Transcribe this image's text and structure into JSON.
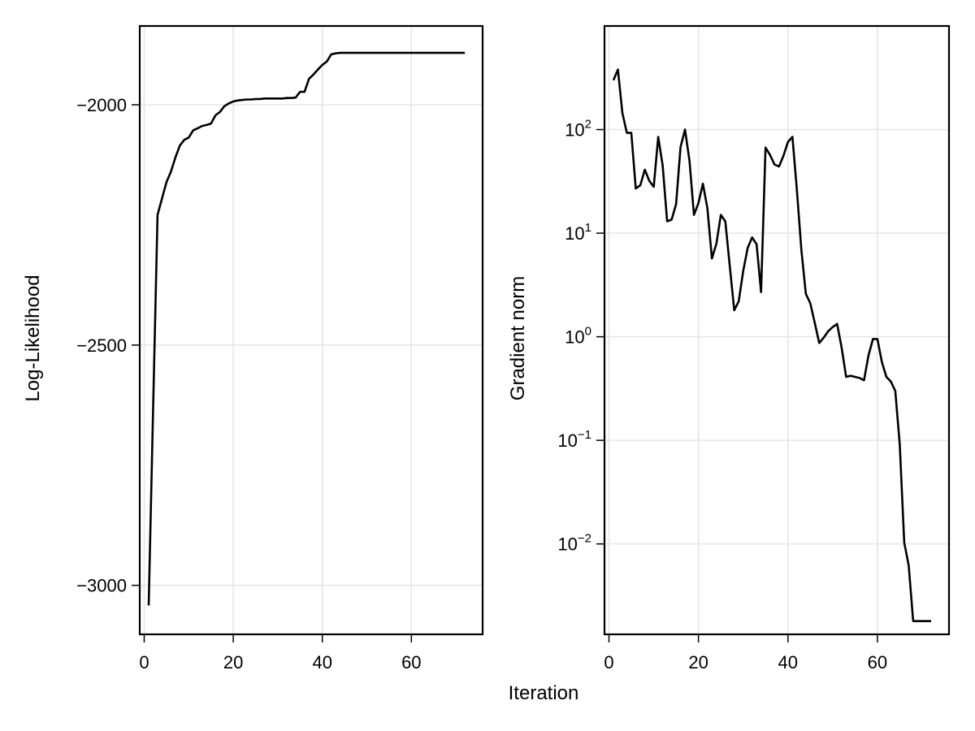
{
  "figure": {
    "shared_xlabel": "Iteration",
    "line_color": "#000000",
    "grid_color": "#e5e5e5",
    "frame_color": "#000000",
    "background": "#ffffff"
  },
  "chart_data": [
    {
      "type": "line",
      "title": "",
      "xlabel": "Iteration",
      "ylabel": "Log-Likelihood",
      "xscale": "linear",
      "yscale": "linear",
      "grid": true,
      "legend": null,
      "xlim": [
        -1,
        76
      ],
      "ylim": [
        -3102,
        -1836
      ],
      "xticks": [
        0,
        20,
        40,
        60
      ],
      "xtick_labels": [
        "0",
        "20",
        "40",
        "60"
      ],
      "yticks": [
        -3000,
        -2500,
        -2000
      ],
      "ytick_labels": [
        "−3000",
        "−2500",
        "−2000"
      ],
      "series": [
        {
          "name": "Log-Likelihood",
          "x": [
            1,
            2,
            3,
            4,
            5,
            6,
            7,
            8,
            9,
            10,
            11,
            12,
            13,
            14,
            15,
            16,
            17,
            18,
            19,
            20,
            21,
            22,
            23,
            24,
            25,
            26,
            27,
            28,
            29,
            30,
            31,
            32,
            33,
            34,
            35,
            36,
            37,
            38,
            39,
            40,
            41,
            42,
            43,
            44,
            45,
            46,
            47,
            48,
            49,
            50,
            51,
            52,
            53,
            54,
            55,
            56,
            57,
            58,
            59,
            60,
            61,
            62,
            63,
            64,
            65,
            66,
            67,
            68,
            69,
            70,
            71,
            72
          ],
          "values": [
            -3042,
            -2636,
            -2229,
            -2195,
            -2161,
            -2139,
            -2110,
            -2085,
            -2073,
            -2068,
            -2053,
            -2049,
            -2044,
            -2042,
            -2039,
            -2022,
            -2015,
            -2003,
            -1997,
            -1993,
            -1991,
            -1990,
            -1989,
            -1989,
            -1988,
            -1988,
            -1987,
            -1987,
            -1987,
            -1987,
            -1987,
            -1986,
            -1986,
            -1985,
            -1973,
            -1973,
            -1946,
            -1937,
            -1927,
            -1917,
            -1910,
            -1895,
            -1893,
            -1892,
            -1892,
            -1892,
            -1892,
            -1892,
            -1892,
            -1892,
            -1892,
            -1892,
            -1892,
            -1892,
            -1892,
            -1892,
            -1892,
            -1892,
            -1892,
            -1892,
            -1892,
            -1892,
            -1892,
            -1892,
            -1892,
            -1892,
            -1892,
            -1892,
            -1892,
            -1892,
            -1892,
            -1892
          ]
        }
      ]
    },
    {
      "type": "line",
      "title": "",
      "xlabel": "Iteration",
      "ylabel": "Gradient norm",
      "xscale": "linear",
      "yscale": "log10",
      "grid": true,
      "legend": null,
      "xlim": [
        -1,
        76
      ],
      "ylim": [
        0.00134,
        1000
      ],
      "xticks": [
        0,
        20,
        40,
        60
      ],
      "xtick_labels": [
        "0",
        "20",
        "40",
        "60"
      ],
      "yticks": [
        0.01,
        0.1,
        1,
        10,
        100
      ],
      "ytick_labels": [
        "10^-2",
        "10^-1",
        "10^0",
        "10^1",
        "10^2"
      ],
      "ytick_base": "10",
      "ytick_exponents": [
        "−2",
        "−1",
        "0",
        "1",
        "2"
      ],
      "series": [
        {
          "name": "Gradient norm",
          "x": [
            1,
            2,
            3,
            4,
            5,
            6,
            7,
            8,
            9,
            10,
            11,
            12,
            13,
            14,
            15,
            16,
            17,
            18,
            19,
            20,
            21,
            22,
            23,
            24,
            25,
            26,
            27,
            28,
            29,
            30,
            31,
            32,
            33,
            34,
            35,
            36,
            37,
            38,
            39,
            40,
            41,
            42,
            43,
            44,
            45,
            46,
            47,
            48,
            49,
            50,
            51,
            52,
            53,
            54,
            55,
            56,
            57,
            58,
            59,
            60,
            61,
            62,
            63,
            64,
            65,
            66,
            67,
            68,
            69,
            70,
            71,
            72
          ],
          "values": [
            300,
            380,
            145,
            93,
            93,
            27,
            29,
            41,
            32,
            28,
            85,
            45,
            13,
            13.5,
            19,
            68,
            100,
            50,
            15,
            19.5,
            30,
            17.5,
            5.7,
            7.9,
            15,
            13,
            4.8,
            1.8,
            2.2,
            4.3,
            7.2,
            9.1,
            7.8,
            2.7,
            67,
            57,
            46,
            44,
            56,
            76,
            85,
            26,
            6.9,
            2.6,
            2.1,
            1.36,
            0.87,
            0.98,
            1.13,
            1.24,
            1.33,
            0.79,
            0.41,
            0.42,
            0.41,
            0.4,
            0.38,
            0.66,
            0.95,
            0.95,
            0.57,
            0.41,
            0.37,
            0.3,
            0.091,
            0.0103,
            0.0062,
            0.0018,
            0.0018,
            0.0018,
            0.0018,
            0.0018
          ]
        }
      ]
    }
  ]
}
